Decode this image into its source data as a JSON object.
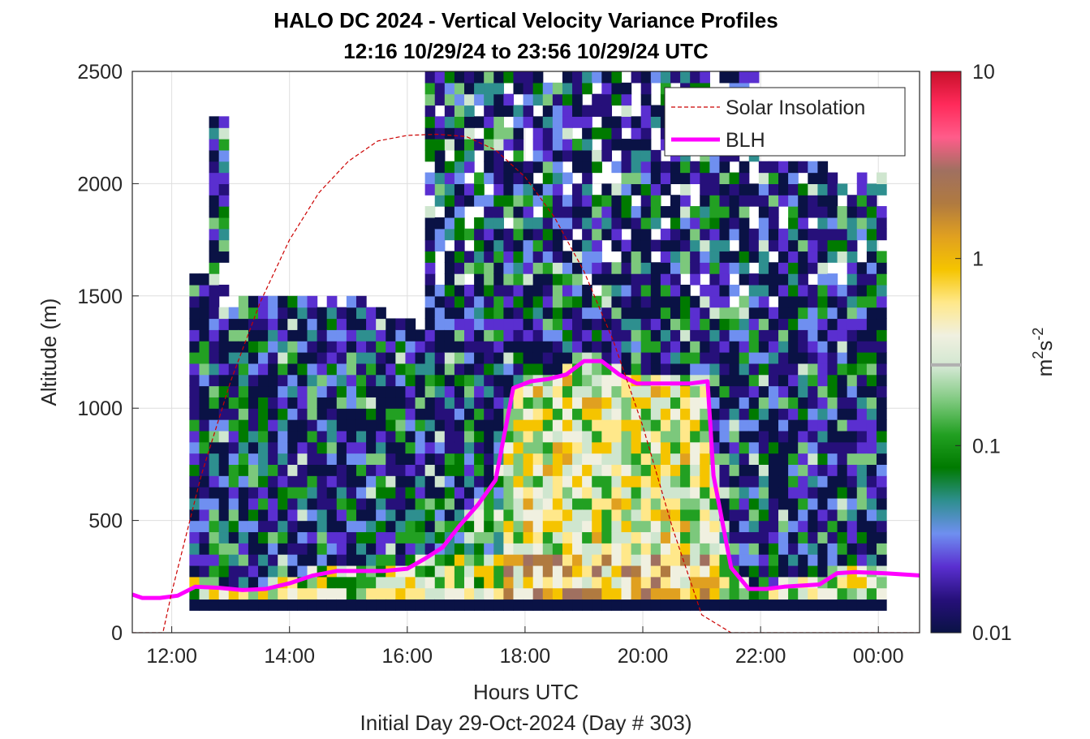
{
  "chart_data": {
    "type": "heatmap",
    "title": "HALO DC 2024 - Vertical Velocity Variance Profiles",
    "subtitle": "12:16 10/29/24 to 23:56 10/29/24  UTC",
    "xlabel": "Hours UTC",
    "xlabel2": "Initial Day 29-Oct-2024 (Day # 303)",
    "ylabel": "Altitude (m)",
    "xlim_hours": [
      11.33,
      24.7
    ],
    "ylim": [
      0,
      2500
    ],
    "x_ticks": [
      {
        "value": 12,
        "label": "12:00"
      },
      {
        "value": 14,
        "label": "14:00"
      },
      {
        "value": 16,
        "label": "16:00"
      },
      {
        "value": 18,
        "label": "18:00"
      },
      {
        "value": 20,
        "label": "20:00"
      },
      {
        "value": 22,
        "label": "22:00"
      },
      {
        "value": 24,
        "label": "00:00"
      }
    ],
    "y_ticks": [
      {
        "value": 0,
        "label": "0"
      },
      {
        "value": 500,
        "label": "500"
      },
      {
        "value": 1000,
        "label": "1000"
      },
      {
        "value": 1500,
        "label": "1500"
      },
      {
        "value": 2000,
        "label": "2000"
      },
      {
        "value": 2500,
        "label": "2500"
      }
    ],
    "grid": true,
    "colorbar": {
      "scale": "log",
      "range": [
        0.01,
        10
      ],
      "label_base": "m",
      "label_sup1": "2",
      "label_mid": "s",
      "label_sup2": "-2",
      "ticks": [
        {
          "value": 0.01,
          "label": "0.01"
        },
        {
          "value": 0.1,
          "label": "0.1"
        },
        {
          "value": 1,
          "label": "1"
        },
        {
          "value": 10,
          "label": "10"
        }
      ],
      "colors": [
        "#0a1245",
        "#26107a",
        "#5a2fd0",
        "#6f8ff0",
        "#2e8f8f",
        "#007a00",
        "#22a022",
        "#7cc87c",
        "#cfe6cf",
        "#f0f0e0",
        "#ffe88a",
        "#f5c400",
        "#e0a020",
        "#b07a40",
        "#a07060",
        "#ff5c8a",
        "#ff2a5a",
        "#c8102a"
      ]
    },
    "legend": {
      "position": "top-right",
      "entries": [
        {
          "name": "Solar Insolation",
          "color": "#cc0000",
          "style": "dashed"
        },
        {
          "name": "BLH",
          "color": "#ff00ff",
          "style": "solid"
        }
      ]
    },
    "series": [
      {
        "name": "BLH",
        "x_hours": [
          11.33,
          11.5,
          11.8,
          12.1,
          12.4,
          12.8,
          13.2,
          13.6,
          14.0,
          14.4,
          14.8,
          15.2,
          15.6,
          16.0,
          16.3,
          16.6,
          16.9,
          17.2,
          17.5,
          17.8,
          18.1,
          18.4,
          18.7,
          19.0,
          19.3,
          19.6,
          19.9,
          20.2,
          20.5,
          20.8,
          21.1,
          21.2,
          21.5,
          21.8,
          22.1,
          22.4,
          22.7,
          23.0,
          23.3,
          23.6,
          24.1,
          24.7
        ],
        "y": [
          170,
          155,
          155,
          165,
          205,
          200,
          190,
          195,
          220,
          255,
          275,
          275,
          275,
          285,
          330,
          380,
          480,
          570,
          680,
          1090,
          1120,
          1130,
          1150,
          1210,
          1210,
          1150,
          1110,
          1110,
          1110,
          1110,
          1120,
          700,
          290,
          195,
          195,
          205,
          210,
          215,
          265,
          270,
          265,
          255
        ]
      },
      {
        "name": "Solar Insolation",
        "x_hours": [
          11.33,
          11.8,
          11.85,
          12.0,
          12.5,
          13.0,
          13.5,
          14.0,
          14.5,
          15.0,
          15.5,
          16.0,
          16.5,
          17.0,
          17.5,
          18.0,
          18.5,
          19.0,
          19.5,
          20.0,
          20.5,
          21.0,
          21.5,
          22.0,
          22.15,
          22.3,
          24.7
        ],
        "y": [
          0,
          0,
          0,
          180,
          700,
          1120,
          1470,
          1750,
          1960,
          2100,
          2190,
          2215,
          2220,
          2210,
          2150,
          2030,
          1850,
          1610,
          1300,
          920,
          470,
          80,
          0,
          0,
          0,
          0,
          0
        ]
      }
    ]
  }
}
